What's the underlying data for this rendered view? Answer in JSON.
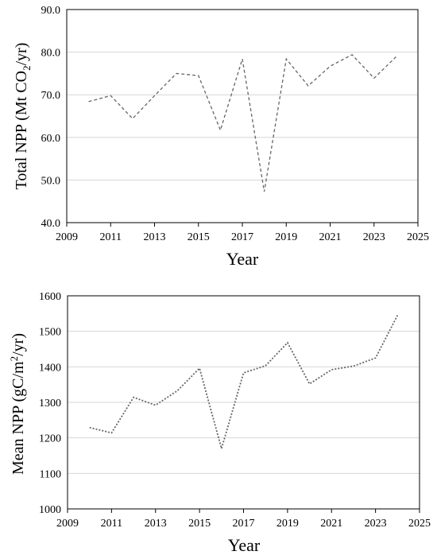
{
  "chart_data": [
    {
      "type": "line",
      "xlabel": "Year",
      "ylabel": "Total NPP (Mt CO₂/yr)",
      "ylabel_parts": [
        "Total NPP (Mt CO",
        "2",
        "/yr)"
      ],
      "xlim": [
        2009,
        2025
      ],
      "ylim": [
        40,
        90
      ],
      "x_ticks": [
        "2009",
        "2011",
        "2013",
        "2015",
        "2017",
        "2019",
        "2021",
        "2023",
        "2025"
      ],
      "y_ticks": [
        "40.0",
        "50.0",
        "60.0",
        "70.0",
        "80.0",
        "90.0"
      ],
      "grid": true,
      "line_style": "dashed",
      "line_color": "#666666",
      "series": [
        {
          "x": [
            2010,
            2011,
            2012,
            2013,
            2014,
            2015,
            2016,
            2017,
            2018,
            2019,
            2020,
            2021,
            2022,
            2023,
            2024
          ],
          "values": [
            68.4,
            69.8,
            64.4,
            69.8,
            75.0,
            74.5,
            61.7,
            78.4,
            47.3,
            78.4,
            72.1,
            76.7,
            79.4,
            73.9,
            78.9
          ]
        }
      ]
    },
    {
      "type": "line",
      "xlabel": "Year",
      "ylabel": "Mean NPP (gC/m²/yr)",
      "ylabel_parts": [
        "Mean NPP (gC/m",
        "2",
        "/yr)"
      ],
      "xlim": [
        2009,
        2025
      ],
      "ylim": [
        1000,
        1600
      ],
      "x_ticks": [
        "2009",
        "2011",
        "2013",
        "2015",
        "2017",
        "2019",
        "2021",
        "2023",
        "2025"
      ],
      "y_ticks": [
        "1000",
        "1100",
        "1200",
        "1300",
        "1400",
        "1500",
        "1600"
      ],
      "grid": true,
      "line_style": "dotted",
      "line_color": "#666666",
      "series": [
        {
          "x": [
            2010,
            2011,
            2012,
            2013,
            2014,
            2015,
            2016,
            2017,
            2018,
            2019,
            2020,
            2021,
            2022,
            2023,
            2024
          ],
          "values": [
            1229,
            1214,
            1314,
            1292,
            1333,
            1396,
            1170,
            1383,
            1403,
            1468,
            1352,
            1392,
            1402,
            1425,
            1545
          ]
        }
      ]
    }
  ]
}
